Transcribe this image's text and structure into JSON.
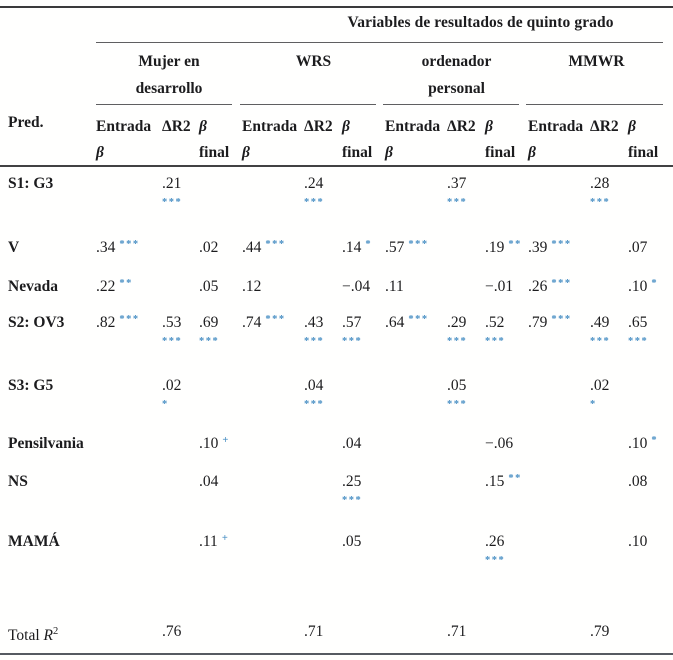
{
  "colors": {
    "significance_marker": "#4a90c4",
    "text": "#1c1c1e",
    "rule_dark": "#3a3a3c",
    "rule_bottom": "#565a61"
  },
  "table": {
    "title": "Variables de resultados de quinto grado",
    "pred_header": "Pred.",
    "groups": [
      {
        "lines": [
          "Mujer en",
          "desarrollo"
        ]
      },
      {
        "lines": [
          "WRS"
        ]
      },
      {
        "lines": [
          "ordenador",
          "personal"
        ]
      },
      {
        "lines": [
          "MMWR"
        ]
      }
    ],
    "col_headers": {
      "entrada": {
        "line1": "Entrada",
        "line2": "β"
      },
      "delta": "ΔR2",
      "final": {
        "line1": "β",
        "line2": "final"
      }
    },
    "rows": [
      {
        "label": "S1: G3",
        "bold": true,
        "cells": [
          null,
          {
            "v": ".21",
            "s": "***",
            "below": true
          },
          null,
          null,
          {
            "v": ".24",
            "s": "***",
            "below": true
          },
          null,
          null,
          {
            "v": ".37",
            "s": "***",
            "below": true
          },
          null,
          null,
          {
            "v": ".28",
            "s": "***",
            "below": true
          },
          null
        ]
      },
      {
        "label": "V",
        "bold": true,
        "cells": [
          {
            "v": ".34",
            "s": "***"
          },
          null,
          {
            "v": ".02"
          },
          {
            "v": ".44",
            "s": "***"
          },
          null,
          {
            "v": ".14",
            "s": "*"
          },
          {
            "v": ".57",
            "s": "***"
          },
          null,
          {
            "v": ".19",
            "s": "**"
          },
          {
            "v": ".39",
            "s": "***"
          },
          null,
          {
            "v": ".07"
          }
        ]
      },
      {
        "label": "Nevada",
        "bold": true,
        "cells": [
          {
            "v": ".22",
            "s": "**"
          },
          null,
          {
            "v": ".05"
          },
          {
            "v": ".12"
          },
          null,
          {
            "v": "−.04"
          },
          {
            "v": ".11"
          },
          null,
          {
            "v": "−.01"
          },
          {
            "v": ".26",
            "s": "***"
          },
          null,
          {
            "v": ".10",
            "s": "*"
          }
        ]
      },
      {
        "label": "S2: OV3",
        "bold": true,
        "cells": [
          {
            "v": ".82",
            "s": "***"
          },
          {
            "v": ".53",
            "s": "***",
            "below": true
          },
          {
            "v": ".69",
            "s": "***",
            "below": true
          },
          {
            "v": ".74",
            "s": "***"
          },
          {
            "v": ".43",
            "s": "***",
            "below": true
          },
          {
            "v": ".57",
            "s": "***",
            "below": true
          },
          {
            "v": ".64",
            "s": "***"
          },
          {
            "v": ".29",
            "s": "***",
            "below": true
          },
          {
            "v": ".52",
            "s": "***",
            "below": true
          },
          {
            "v": ".79",
            "s": "***"
          },
          {
            "v": ".49",
            "s": "***",
            "below": true
          },
          {
            "v": ".65",
            "s": "***",
            "below": true
          }
        ]
      },
      {
        "label": "S3: G5",
        "bold": true,
        "cells": [
          null,
          {
            "v": ".02",
            "s": "*",
            "below": true
          },
          null,
          null,
          {
            "v": ".04",
            "s": "***",
            "below": true
          },
          null,
          null,
          {
            "v": ".05",
            "s": "***",
            "below": true
          },
          null,
          null,
          {
            "v": ".02",
            "s": "*",
            "below": true
          },
          null
        ]
      },
      {
        "label": "Pensilvania",
        "bold": true,
        "cells": [
          null,
          null,
          {
            "v": ".10",
            "s": "+"
          },
          null,
          null,
          {
            "v": ".04"
          },
          null,
          null,
          {
            "v": "−.06"
          },
          null,
          null,
          {
            "v": ".10",
            "s": "*"
          }
        ]
      },
      {
        "label": "NS",
        "bold": true,
        "cells": [
          null,
          null,
          {
            "v": ".04"
          },
          null,
          null,
          {
            "v": ".25",
            "s": "***",
            "below": true
          },
          null,
          null,
          {
            "v": ".15",
            "s": "**"
          },
          null,
          null,
          {
            "v": ".08"
          }
        ]
      },
      {
        "label": "MAMÁ",
        "bold": true,
        "cells": [
          null,
          null,
          {
            "v": ".11",
            "s": "+"
          },
          null,
          null,
          {
            "v": ".05"
          },
          null,
          null,
          {
            "v": ".26",
            "s": "***",
            "below": true
          },
          null,
          null,
          {
            "v": ".10"
          }
        ]
      },
      {
        "label": "Total ",
        "label_italic": "R",
        "label_sup": "2",
        "bold": false,
        "cells": [
          null,
          {
            "v": ".76"
          },
          null,
          null,
          {
            "v": ".71"
          },
          null,
          null,
          {
            "v": ".71"
          },
          null,
          null,
          {
            "v": ".79"
          },
          null
        ]
      }
    ]
  }
}
